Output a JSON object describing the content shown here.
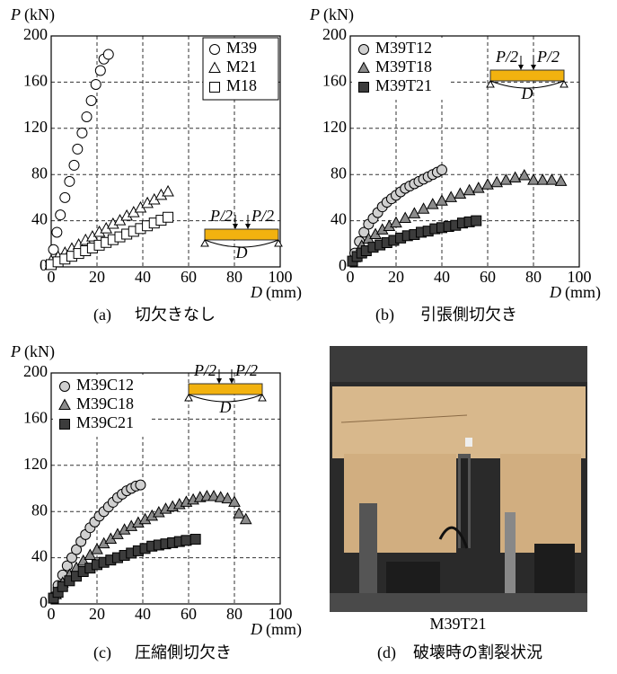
{
  "chart_data": [
    {
      "type": "scatter",
      "caption_tag": "(a)",
      "caption": "切欠きなし",
      "ylabel_symbol": "P",
      "ylabel_unit": "(kN)",
      "xlabel_symbol": "D",
      "xlabel_unit": "(mm)",
      "xlim": [
        0,
        100
      ],
      "ylim": [
        0,
        200
      ],
      "xticks": [
        0,
        20,
        40,
        60,
        80,
        100
      ],
      "yticks": [
        0,
        40,
        80,
        120,
        160,
        200
      ],
      "grid": true,
      "legend": "upper right",
      "inset": {
        "load_labels": [
          "P/2",
          "P/2"
        ],
        "deflection_label": "D"
      },
      "series": [
        {
          "name": "M39",
          "marker": "circle",
          "color": "#ffffff",
          "x": [
            1,
            2.5,
            4,
            6,
            8,
            10,
            11.5,
            13.5,
            15.5,
            17.5,
            19.5,
            21.5,
            23,
            25
          ],
          "values": [
            15,
            30,
            45,
            60,
            74,
            88,
            102,
            116,
            130,
            144,
            158,
            170,
            180,
            184
          ]
        },
        {
          "name": "M21",
          "marker": "triangle",
          "color": "#ffffff",
          "x": [
            0,
            3,
            6,
            9,
            12,
            15,
            18,
            21,
            24,
            27,
            30,
            33,
            36,
            39,
            42,
            45,
            48,
            51
          ],
          "values": [
            5,
            8.5,
            12,
            15.6,
            19,
            23,
            26,
            30,
            33,
            37,
            40,
            44,
            47,
            51,
            55,
            58,
            62,
            65
          ]
        },
        {
          "name": "M18",
          "marker": "square",
          "color": "#ffffff",
          "x": [
            0,
            3,
            6,
            9,
            12,
            15,
            18,
            21,
            24,
            27,
            30,
            33,
            36,
            39,
            42,
            45,
            48,
            51
          ],
          "values": [
            2,
            4.4,
            6.8,
            9.2,
            11.6,
            14,
            16.4,
            18.8,
            21.2,
            23.6,
            26,
            28.4,
            30.8,
            33.2,
            35.6,
            38,
            40.4,
            43
          ]
        }
      ]
    },
    {
      "type": "scatter",
      "caption_tag": "(b)",
      "caption": "引張側切欠き",
      "ylabel_symbol": "P",
      "ylabel_unit": "(kN)",
      "xlabel_symbol": "D",
      "xlabel_unit": "(mm)",
      "xlim": [
        0,
        100
      ],
      "ylim": [
        0,
        200
      ],
      "xticks": [
        0,
        20,
        40,
        60,
        80,
        100
      ],
      "yticks": [
        0,
        40,
        80,
        120,
        160,
        200
      ],
      "grid": true,
      "legend": "upper left",
      "inset": {
        "load_labels": [
          "P/2",
          "P/2"
        ],
        "deflection_label": "D"
      },
      "series": [
        {
          "name": "M39T12",
          "marker": "circle",
          "color": "#d0d0d0",
          "x": [
            2,
            4,
            6,
            8,
            10,
            12,
            14,
            16,
            18,
            20,
            22,
            24,
            26,
            28,
            30,
            32,
            34,
            36,
            38,
            40
          ],
          "values": [
            12,
            22,
            30,
            37,
            42,
            47,
            52,
            56,
            59,
            62,
            65,
            68,
            70,
            72,
            74,
            76,
            78,
            80,
            82,
            84
          ]
        },
        {
          "name": "M39T18",
          "marker": "triangle",
          "color": "#8c8c8c",
          "x": [
            2,
            5,
            8,
            11,
            14,
            17,
            20,
            24,
            28,
            32,
            36,
            40,
            44,
            48,
            52,
            56,
            60,
            64,
            68,
            72,
            76,
            80,
            84,
            88,
            92
          ],
          "values": [
            8,
            18,
            24,
            28,
            32,
            35,
            38,
            42,
            46,
            50,
            54,
            57,
            60,
            63,
            66,
            68,
            71,
            73,
            75,
            77,
            79,
            75,
            75,
            75,
            74
          ]
        },
        {
          "name": "M39T21",
          "marker": "square",
          "color": "#3c3c3c",
          "x": [
            1,
            3,
            5,
            7,
            10,
            13,
            16,
            19,
            22,
            25,
            28,
            31,
            34,
            37,
            40,
            43,
            46,
            49,
            52,
            55
          ],
          "values": [
            5,
            9,
            12,
            14,
            17,
            19,
            21,
            23,
            25,
            27,
            28,
            30,
            31,
            33,
            34,
            35,
            36,
            38,
            39,
            40
          ]
        }
      ]
    },
    {
      "type": "scatter",
      "caption_tag": "(c)",
      "caption": "圧縮側切欠き",
      "ylabel_symbol": "P",
      "ylabel_unit": "(kN)",
      "xlabel_symbol": "D",
      "xlabel_unit": "(mm)",
      "xlim": [
        0,
        100
      ],
      "ylim": [
        0,
        200
      ],
      "xticks": [
        0,
        20,
        40,
        60,
        80,
        100
      ],
      "yticks": [
        0,
        40,
        80,
        120,
        160,
        200
      ],
      "grid": true,
      "legend": "upper left",
      "inset": {
        "load_labels": [
          "P/2",
          "P/2"
        ],
        "deflection_label": "D"
      },
      "series": [
        {
          "name": "M39C12",
          "marker": "circle",
          "color": "#d0d0d0",
          "x": [
            1,
            3,
            5,
            7,
            9,
            11,
            13,
            15,
            17,
            19,
            21,
            23,
            25,
            27,
            29,
            31,
            33,
            35,
            37,
            39
          ],
          "values": [
            6,
            16,
            25,
            33,
            40,
            47,
            54,
            60,
            66,
            71,
            76,
            80,
            84,
            88,
            92,
            95,
            98,
            100,
            102,
            103
          ]
        },
        {
          "name": "M39C18",
          "marker": "triangle",
          "color": "#8c8c8c",
          "x": [
            2,
            5,
            8,
            11,
            14,
            17,
            20,
            23,
            26,
            29,
            32,
            35,
            38,
            41,
            44,
            47,
            50,
            53,
            56,
            59,
            62,
            65,
            68,
            71,
            74,
            77,
            80,
            82,
            85
          ],
          "values": [
            8,
            18,
            25,
            31,
            37,
            42,
            47,
            52,
            56,
            60,
            64,
            67,
            70,
            73,
            76,
            79,
            82,
            84,
            86,
            88,
            90,
            92,
            93,
            93,
            92,
            91,
            88,
            78,
            73
          ]
        },
        {
          "name": "M39C21",
          "marker": "square",
          "color": "#3c3c3c",
          "x": [
            1,
            3,
            5,
            8,
            11,
            14,
            17,
            20,
            23,
            26,
            29,
            32,
            35,
            38,
            41,
            44,
            47,
            50,
            53,
            56,
            59,
            63
          ],
          "values": [
            5,
            10,
            15,
            20,
            24,
            28,
            31,
            34,
            36,
            38,
            40,
            42,
            44,
            46,
            48,
            50,
            51,
            52,
            53,
            54,
            55,
            56
          ]
        }
      ]
    }
  ],
  "photo": {
    "label": "M39T21",
    "caption_tag": "(d)",
    "caption": "破壊時の割裂状況"
  }
}
